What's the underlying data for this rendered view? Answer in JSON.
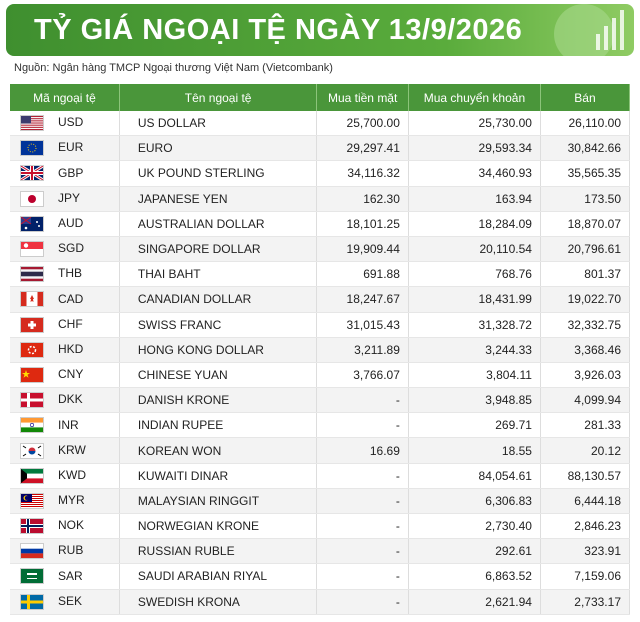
{
  "header": {
    "title": "TỶ GIÁ NGOẠI TỆ NGÀY 13/9/2026",
    "source": "Nguồn: Ngân hàng TMCP Ngoại thương Việt Nam (Vietcombank)"
  },
  "table": {
    "columns": [
      "Mã ngoại tệ",
      "Tên ngoại tệ",
      "Mua tiền mặt",
      "Mua chuyển khoản",
      "Bán"
    ],
    "rows": [
      [
        "USD",
        "US DOLLAR",
        "25,700.00",
        "25,730.00",
        "26,110.00"
      ],
      [
        "EUR",
        "EURO",
        "29,297.41",
        "29,593.34",
        "30,842.66"
      ],
      [
        "GBP",
        "UK POUND STERLING",
        "34,116.32",
        "34,460.93",
        "35,565.35"
      ],
      [
        "JPY",
        "JAPANESE YEN",
        "162.30",
        "163.94",
        "173.50"
      ],
      [
        "AUD",
        "AUSTRALIAN DOLLAR",
        "18,101.25",
        "18,284.09",
        "18,870.07"
      ],
      [
        "SGD",
        "SINGAPORE DOLLAR",
        "19,909.44",
        "20,110.54",
        "20,796.61"
      ],
      [
        "THB",
        "THAI BAHT",
        "691.88",
        "768.76",
        "801.37"
      ],
      [
        "CAD",
        "CANADIAN DOLLAR",
        "18,247.67",
        "18,431.99",
        "19,022.70"
      ],
      [
        "CHF",
        "SWISS FRANC",
        "31,015.43",
        "31,328.72",
        "32,332.75"
      ],
      [
        "HKD",
        "HONG KONG DOLLAR",
        "3,211.89",
        "3,244.33",
        "3,368.46"
      ],
      [
        "CNY",
        "CHINESE YUAN",
        "3,766.07",
        "3,804.11",
        "3,926.03"
      ],
      [
        "DKK",
        "DANISH KRONE",
        "-",
        "3,948.85",
        "4,099.94"
      ],
      [
        "INR",
        "INDIAN RUPEE",
        "-",
        "269.71",
        "281.33"
      ],
      [
        "KRW",
        "KOREAN WON",
        "16.69",
        "18.55",
        "20.12"
      ],
      [
        "KWD",
        "KUWAITI DINAR",
        "-",
        "84,054.61",
        "88,130.57"
      ],
      [
        "MYR",
        "MALAYSIAN RINGGIT",
        "-",
        "6,306.83",
        "6,444.18"
      ],
      [
        "NOK",
        "NORWEGIAN KRONE",
        "-",
        "2,730.40",
        "2,846.23"
      ],
      [
        "RUB",
        "RUSSIAN RUBLE",
        "-",
        "292.61",
        "323.91"
      ],
      [
        "SAR",
        "SAUDI ARABIAN RIYAL",
        "-",
        "6,863.52",
        "7,159.06"
      ],
      [
        "SEK",
        "SWEDISH KRONA",
        "-",
        "2,621.94",
        "2,733.17"
      ]
    ]
  }
}
